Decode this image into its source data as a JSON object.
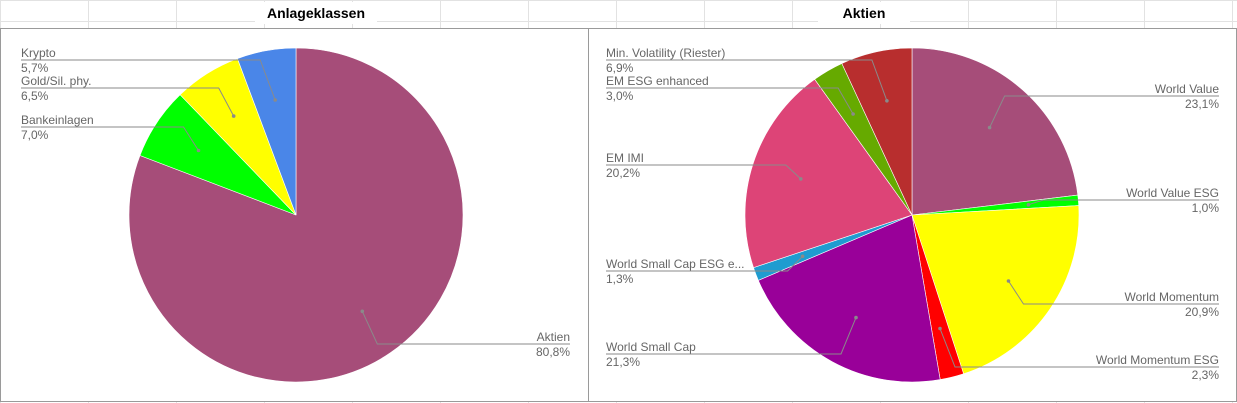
{
  "chart_data": [
    {
      "type": "pie",
      "title": "Anlageklassen",
      "slices": [
        {
          "label": "Aktien",
          "value": 80.8,
          "value_label": "80,8%",
          "color": "#a64d79"
        },
        {
          "label": "Bankeinlagen",
          "value": 7.0,
          "value_label": "7,0%",
          "color": "#00ff00"
        },
        {
          "label": "Gold/Sil. phy.",
          "value": 6.5,
          "value_label": "6,5%",
          "color": "#ffff00"
        },
        {
          "label": "Krypto",
          "value": 5.7,
          "value_label": "5,7%",
          "color": "#4a86e8"
        }
      ],
      "start_angle_deg": 0,
      "direction": "clockwise"
    },
    {
      "type": "pie",
      "title": "Aktien",
      "slices": [
        {
          "label": "World Value",
          "value": 23.1,
          "value_label": "23,1%",
          "color": "#a64d79"
        },
        {
          "label": "World Value ESG",
          "value": 1.0,
          "value_label": "1,0%",
          "color": "#00ff00"
        },
        {
          "label": "World Momentum",
          "value": 20.9,
          "value_label": "20,9%",
          "color": "#ffff00"
        },
        {
          "label": "World Momentum ESG",
          "value": 2.3,
          "value_label": "2,3%",
          "color": "#ff0000"
        },
        {
          "label": "World Small Cap",
          "value": 21.3,
          "value_label": "21,3%",
          "color": "#990099"
        },
        {
          "label": "World Small Cap ESG e...",
          "value": 1.3,
          "value_label": "1,3%",
          "color": "#1f9cd0"
        },
        {
          "label": "EM IMI",
          "value": 20.2,
          "value_label": "20,2%",
          "color": "#dd4477"
        },
        {
          "label": "EM ESG enhanced",
          "value": 3.0,
          "value_label": "3,0%",
          "color": "#66aa00"
        },
        {
          "label": "Min. Volatility (Riester)",
          "value": 6.9,
          "value_label": "6,9%",
          "color": "#b82e2e"
        }
      ],
      "start_angle_deg": 0,
      "direction": "clockwise"
    }
  ]
}
